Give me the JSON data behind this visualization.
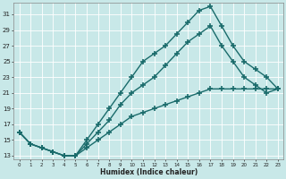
{
  "xlabel": "Humidex (Indice chaleur)",
  "bg_color": "#c8e8e8",
  "grid_color": "#b0d0d0",
  "line_color": "#1a6b6b",
  "marker": "+",
  "marker_size": 4,
  "line_width": 1.0,
  "xlim": [
    -0.5,
    23.5
  ],
  "ylim": [
    12.5,
    32.5
  ],
  "yticks": [
    13,
    15,
    17,
    19,
    21,
    23,
    25,
    27,
    29,
    31
  ],
  "xticks": [
    0,
    1,
    2,
    3,
    4,
    5,
    6,
    7,
    8,
    9,
    10,
    11,
    12,
    13,
    14,
    15,
    16,
    17,
    18,
    19,
    20,
    21,
    22,
    23
  ],
  "line1_x": [
    0,
    1,
    2,
    3,
    4,
    5,
    6,
    7,
    8,
    9,
    10,
    11,
    12,
    13,
    14,
    15,
    16,
    17,
    18,
    19,
    20,
    21,
    22,
    23
  ],
  "line1_y": [
    16,
    14.5,
    14,
    13.5,
    13,
    13,
    15,
    17,
    19,
    21,
    23,
    25,
    26,
    27,
    28.5,
    30,
    31.5,
    32,
    29.5,
    27,
    25,
    24,
    23,
    21.5
  ],
  "line2_x": [
    0,
    1,
    2,
    3,
    4,
    5,
    6,
    7,
    8,
    9,
    10,
    11,
    12,
    13,
    14,
    15,
    16,
    17,
    18,
    19,
    20,
    21,
    22,
    23
  ],
  "line2_y": [
    16,
    14.5,
    14,
    13.5,
    13,
    13,
    14.5,
    16,
    17.5,
    19.5,
    21,
    22,
    23,
    24.5,
    26,
    27.5,
    28.5,
    29.5,
    27,
    25,
    23,
    22,
    21,
    21.5
  ],
  "line3_x": [
    0,
    1,
    2,
    3,
    4,
    5,
    6,
    7,
    8,
    9,
    10,
    11,
    12,
    13,
    14,
    15,
    16,
    17,
    18,
    19,
    20,
    21,
    22,
    23
  ],
  "line3_y": [
    16,
    14.5,
    14,
    13.5,
    13,
    13,
    14,
    15,
    16,
    17,
    18,
    18.5,
    19,
    19.5,
    20,
    20.5,
    21,
    21.5,
    21.5,
    21.5,
    21.5,
    21.5,
    21.5,
    21.5
  ]
}
